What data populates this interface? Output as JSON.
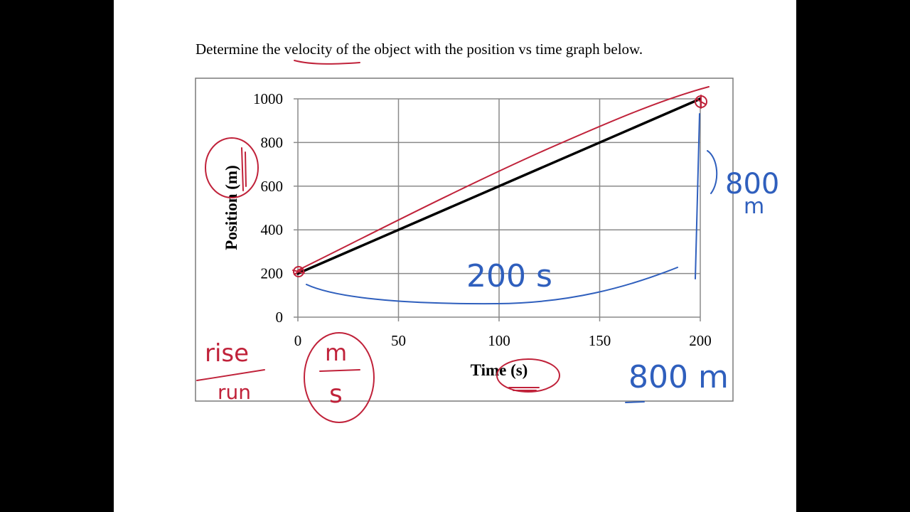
{
  "question": {
    "prefix": "Determine the ",
    "highlight": "velocity",
    "suffix": " of the object with the position vs time graph below."
  },
  "chart_data": {
    "type": "line",
    "title": "",
    "xlabel": "Time (s)",
    "ylabel": "Position (m)",
    "xlim": [
      0,
      200
    ],
    "ylim": [
      0,
      1000
    ],
    "x_ticks": [
      0,
      50,
      100,
      150,
      200
    ],
    "y_ticks": [
      0,
      200,
      400,
      600,
      800,
      1000
    ],
    "grid": true,
    "series": [
      {
        "x": [
          0,
          200
        ],
        "y": [
          200,
          1000
        ],
        "color": "#000000"
      }
    ]
  },
  "annotations": {
    "rise_label": "rise",
    "run_label": "run",
    "units_top": "m",
    "units_bottom": "s",
    "run_value": "200 s",
    "rise_value": "800",
    "rise_unit": "m",
    "rise_result": "800 m",
    "ink_red": "#c0223a",
    "ink_blue": "#2f5fbd"
  }
}
